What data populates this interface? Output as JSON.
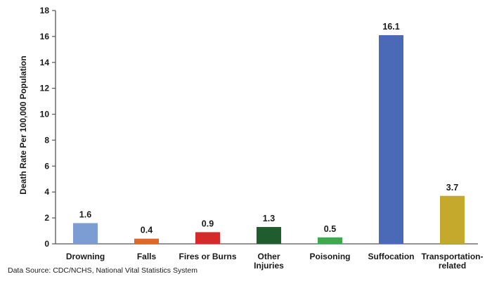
{
  "chart_data": {
    "type": "bar",
    "title": "",
    "xlabel": "",
    "ylabel": "Death Rate Per 100,000 Population",
    "categories": [
      "Drowning",
      "Falls",
      "Fires or Burns",
      "Other Injuries",
      "Poisoning",
      "Suffocation",
      "Transportation-related"
    ],
    "category_lines": [
      [
        "Drowning"
      ],
      [
        "Falls"
      ],
      [
        "Fires or Burns"
      ],
      [
        "Other",
        "Injuries"
      ],
      [
        "Poisoning"
      ],
      [
        "Suffocation"
      ],
      [
        "Transportation-",
        "related"
      ]
    ],
    "values": [
      1.6,
      0.4,
      0.9,
      1.3,
      0.5,
      16.1,
      3.7
    ],
    "data_labels": [
      "1.6",
      "0.4",
      "0.9",
      "1.3",
      "0.5",
      "16.1",
      "3.7"
    ],
    "colors": [
      "#7b9dd3",
      "#e2662a",
      "#d42a2a",
      "#1f5c2e",
      "#3fa94e",
      "#4a6ab8",
      "#c4a92c"
    ],
    "ylim": [
      0,
      18
    ],
    "yticks": [
      0,
      2,
      4,
      6,
      8,
      10,
      12,
      14,
      16,
      18
    ],
    "grid": false,
    "legend": "none"
  },
  "source_note": "Data Source: CDC/NCHS, National Vital Statistics System"
}
